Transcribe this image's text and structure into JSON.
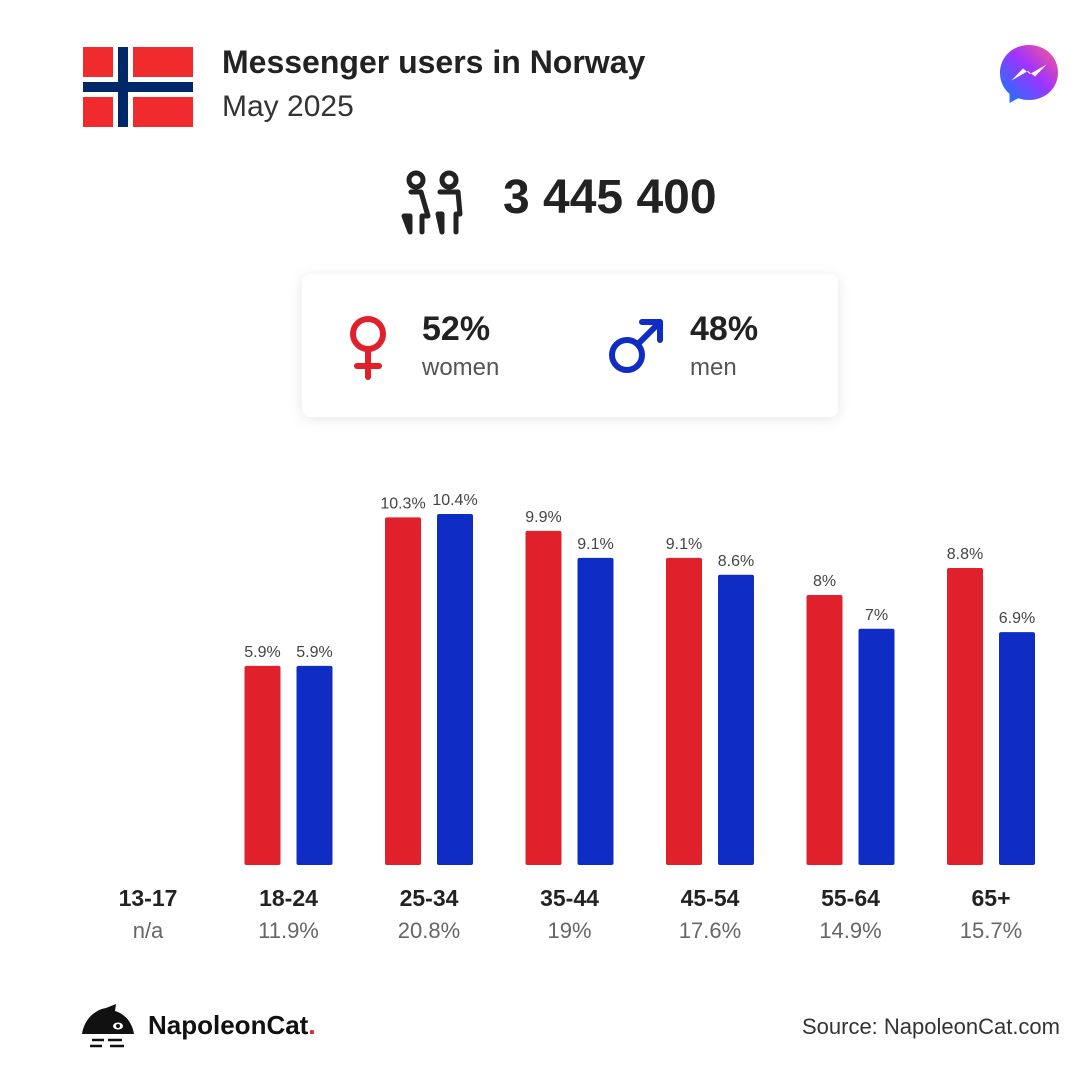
{
  "header": {
    "title": "Messenger users in Norway",
    "subtitle": "May 2025"
  },
  "summary": {
    "total_users": "3 445 400",
    "women": {
      "percent": "52%",
      "label": "women"
    },
    "men": {
      "percent": "48%",
      "label": "men"
    }
  },
  "colors": {
    "women": "#e0202a",
    "men": "#0f2dc4",
    "flag_red": "#ef2b2d",
    "flag_blue": "#002868"
  },
  "chart_data": {
    "type": "bar",
    "title": "",
    "categories": [
      "13-17",
      "18-24",
      "25-34",
      "35-44",
      "45-54",
      "55-64",
      "65+"
    ],
    "category_totals": [
      "n/a",
      "11.9%",
      "20.8%",
      "19%",
      "17.6%",
      "14.9%",
      "15.7%"
    ],
    "series": [
      {
        "key": "women",
        "values": [
          null,
          5.9,
          10.3,
          9.9,
          9.1,
          8,
          8.8
        ],
        "labels": [
          "",
          "5.9%",
          "10.3%",
          "9.9%",
          "9.1%",
          "8%",
          "8.8%"
        ]
      },
      {
        "key": "men",
        "values": [
          null,
          5.9,
          10.4,
          9.1,
          8.6,
          7,
          6.9
        ],
        "labels": [
          "",
          "5.9%",
          "10.4%",
          "9.1%",
          "8.6%",
          "7%",
          "6.9%"
        ]
      }
    ],
    "xlabel": "",
    "ylabel": "",
    "ylim": [
      0,
      10.4
    ],
    "grid": false
  },
  "footer": {
    "brand_name": "NapoleonCat",
    "brand_dot": ".",
    "source": "Source: NapoleonCat.com"
  },
  "icons": {
    "flag": "norway-flag-icon",
    "app_logo": "messenger-logo-icon",
    "people": "people-icon",
    "female": "female-symbol-icon",
    "male": "male-symbol-icon",
    "brand_logo": "napoleoncat-logo-icon"
  }
}
